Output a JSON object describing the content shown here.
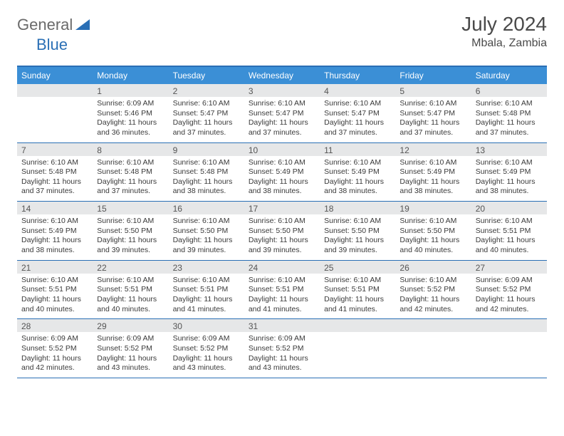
{
  "brand": {
    "part1": "General",
    "part2": "Blue"
  },
  "title": "July 2024",
  "location": "Mbala, Zambia",
  "colors": {
    "header_bg": "#3b8fd6",
    "border": "#2a6fb5",
    "daynum_bg": "#e6e7e8",
    "text": "#3a3a3a",
    "brand_gray": "#6a6a6a",
    "brand_blue": "#2a6fb5"
  },
  "dow": [
    "Sunday",
    "Monday",
    "Tuesday",
    "Wednesday",
    "Thursday",
    "Friday",
    "Saturday"
  ],
  "weeks": [
    [
      {
        "n": "",
        "lines": []
      },
      {
        "n": "1",
        "lines": [
          "Sunrise: 6:09 AM",
          "Sunset: 5:46 PM",
          "Daylight: 11 hours and 36 minutes."
        ]
      },
      {
        "n": "2",
        "lines": [
          "Sunrise: 6:10 AM",
          "Sunset: 5:47 PM",
          "Daylight: 11 hours and 37 minutes."
        ]
      },
      {
        "n": "3",
        "lines": [
          "Sunrise: 6:10 AM",
          "Sunset: 5:47 PM",
          "Daylight: 11 hours and 37 minutes."
        ]
      },
      {
        "n": "4",
        "lines": [
          "Sunrise: 6:10 AM",
          "Sunset: 5:47 PM",
          "Daylight: 11 hours and 37 minutes."
        ]
      },
      {
        "n": "5",
        "lines": [
          "Sunrise: 6:10 AM",
          "Sunset: 5:47 PM",
          "Daylight: 11 hours and 37 minutes."
        ]
      },
      {
        "n": "6",
        "lines": [
          "Sunrise: 6:10 AM",
          "Sunset: 5:48 PM",
          "Daylight: 11 hours and 37 minutes."
        ]
      }
    ],
    [
      {
        "n": "7",
        "lines": [
          "Sunrise: 6:10 AM",
          "Sunset: 5:48 PM",
          "Daylight: 11 hours and 37 minutes."
        ]
      },
      {
        "n": "8",
        "lines": [
          "Sunrise: 6:10 AM",
          "Sunset: 5:48 PM",
          "Daylight: 11 hours and 37 minutes."
        ]
      },
      {
        "n": "9",
        "lines": [
          "Sunrise: 6:10 AM",
          "Sunset: 5:48 PM",
          "Daylight: 11 hours and 38 minutes."
        ]
      },
      {
        "n": "10",
        "lines": [
          "Sunrise: 6:10 AM",
          "Sunset: 5:49 PM",
          "Daylight: 11 hours and 38 minutes."
        ]
      },
      {
        "n": "11",
        "lines": [
          "Sunrise: 6:10 AM",
          "Sunset: 5:49 PM",
          "Daylight: 11 hours and 38 minutes."
        ]
      },
      {
        "n": "12",
        "lines": [
          "Sunrise: 6:10 AM",
          "Sunset: 5:49 PM",
          "Daylight: 11 hours and 38 minutes."
        ]
      },
      {
        "n": "13",
        "lines": [
          "Sunrise: 6:10 AM",
          "Sunset: 5:49 PM",
          "Daylight: 11 hours and 38 minutes."
        ]
      }
    ],
    [
      {
        "n": "14",
        "lines": [
          "Sunrise: 6:10 AM",
          "Sunset: 5:49 PM",
          "Daylight: 11 hours and 38 minutes."
        ]
      },
      {
        "n": "15",
        "lines": [
          "Sunrise: 6:10 AM",
          "Sunset: 5:50 PM",
          "Daylight: 11 hours and 39 minutes."
        ]
      },
      {
        "n": "16",
        "lines": [
          "Sunrise: 6:10 AM",
          "Sunset: 5:50 PM",
          "Daylight: 11 hours and 39 minutes."
        ]
      },
      {
        "n": "17",
        "lines": [
          "Sunrise: 6:10 AM",
          "Sunset: 5:50 PM",
          "Daylight: 11 hours and 39 minutes."
        ]
      },
      {
        "n": "18",
        "lines": [
          "Sunrise: 6:10 AM",
          "Sunset: 5:50 PM",
          "Daylight: 11 hours and 39 minutes."
        ]
      },
      {
        "n": "19",
        "lines": [
          "Sunrise: 6:10 AM",
          "Sunset: 5:50 PM",
          "Daylight: 11 hours and 40 minutes."
        ]
      },
      {
        "n": "20",
        "lines": [
          "Sunrise: 6:10 AM",
          "Sunset: 5:51 PM",
          "Daylight: 11 hours and 40 minutes."
        ]
      }
    ],
    [
      {
        "n": "21",
        "lines": [
          "Sunrise: 6:10 AM",
          "Sunset: 5:51 PM",
          "Daylight: 11 hours and 40 minutes."
        ]
      },
      {
        "n": "22",
        "lines": [
          "Sunrise: 6:10 AM",
          "Sunset: 5:51 PM",
          "Daylight: 11 hours and 40 minutes."
        ]
      },
      {
        "n": "23",
        "lines": [
          "Sunrise: 6:10 AM",
          "Sunset: 5:51 PM",
          "Daylight: 11 hours and 41 minutes."
        ]
      },
      {
        "n": "24",
        "lines": [
          "Sunrise: 6:10 AM",
          "Sunset: 5:51 PM",
          "Daylight: 11 hours and 41 minutes."
        ]
      },
      {
        "n": "25",
        "lines": [
          "Sunrise: 6:10 AM",
          "Sunset: 5:51 PM",
          "Daylight: 11 hours and 41 minutes."
        ]
      },
      {
        "n": "26",
        "lines": [
          "Sunrise: 6:10 AM",
          "Sunset: 5:52 PM",
          "Daylight: 11 hours and 42 minutes."
        ]
      },
      {
        "n": "27",
        "lines": [
          "Sunrise: 6:09 AM",
          "Sunset: 5:52 PM",
          "Daylight: 11 hours and 42 minutes."
        ]
      }
    ],
    [
      {
        "n": "28",
        "lines": [
          "Sunrise: 6:09 AM",
          "Sunset: 5:52 PM",
          "Daylight: 11 hours and 42 minutes."
        ]
      },
      {
        "n": "29",
        "lines": [
          "Sunrise: 6:09 AM",
          "Sunset: 5:52 PM",
          "Daylight: 11 hours and 43 minutes."
        ]
      },
      {
        "n": "30",
        "lines": [
          "Sunrise: 6:09 AM",
          "Sunset: 5:52 PM",
          "Daylight: 11 hours and 43 minutes."
        ]
      },
      {
        "n": "31",
        "lines": [
          "Sunrise: 6:09 AM",
          "Sunset: 5:52 PM",
          "Daylight: 11 hours and 43 minutes."
        ]
      },
      {
        "n": "",
        "lines": []
      },
      {
        "n": "",
        "lines": []
      },
      {
        "n": "",
        "lines": []
      }
    ]
  ]
}
